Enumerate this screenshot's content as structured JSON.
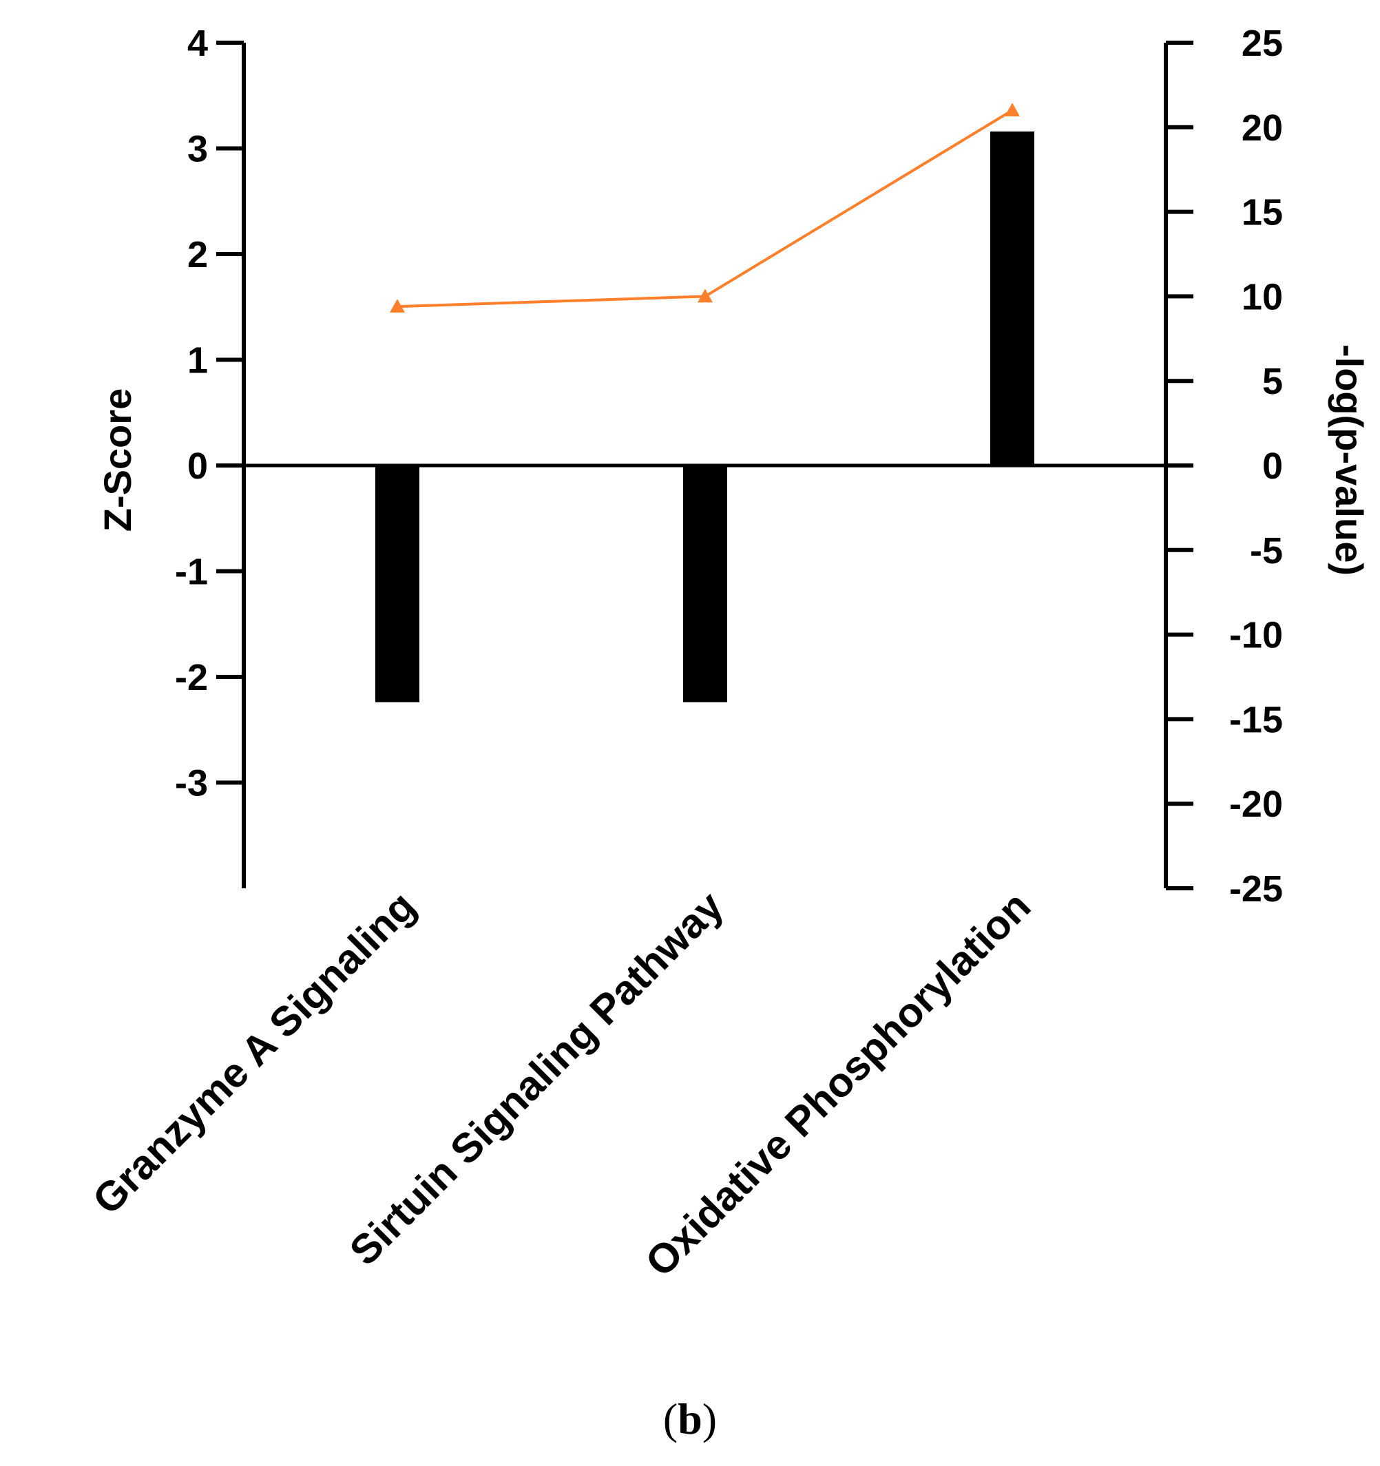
{
  "chart_data": {
    "type": "bar",
    "categories": [
      "Granzyme A Signaling",
      "Sirtuin Signaling Pathway",
      "Oxidative Phosphorylation"
    ],
    "series": [
      {
        "name": "",
        "type": "bar",
        "axis": "left",
        "values": [
          -2.24,
          -2.24,
          3.16
        ],
        "color": "#000000"
      },
      {
        "name": "",
        "type": "line",
        "axis": "right",
        "marker": "triangle",
        "values": [
          9.4,
          10.0,
          21.0
        ],
        "color": "#ff7f2a"
      }
    ],
    "ylabel": "Z-Score",
    "ylabel_right": "-log(p-value)",
    "ylim": [
      -4,
      4
    ],
    "ylim_right": [
      -25,
      25
    ],
    "yticks": [
      4,
      3,
      2,
      1,
      0,
      -1,
      -2,
      -3
    ],
    "yticks_right": [
      25,
      20,
      15,
      10,
      5,
      0,
      -5,
      -10,
      -15,
      -20,
      -25
    ],
    "legend": "none",
    "grid": false
  },
  "panel_label": {
    "open": "(",
    "letter": "b",
    "close": ")"
  }
}
